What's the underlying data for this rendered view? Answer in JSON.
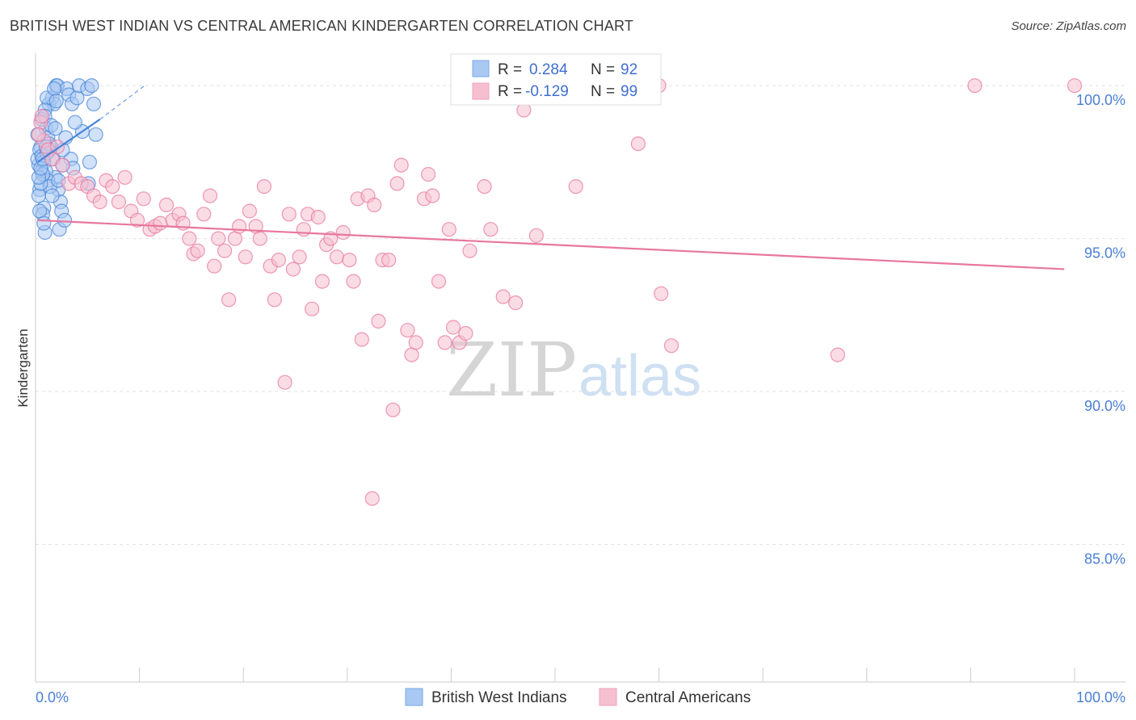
{
  "title": "BRITISH WEST INDIAN VS CENTRAL AMERICAN KINDERGARTEN CORRELATION CHART",
  "source": "Source: ZipAtlas.com",
  "watermark": {
    "zip": "ZIP",
    "atlas": "atlas"
  },
  "legend_box": {
    "rows": [
      {
        "r_label": "R =",
        "r_value": "0.284",
        "n_label": "N =",
        "n_value": "92",
        "color": "#7aaae8"
      },
      {
        "r_label": "R =",
        "r_value": "-0.129",
        "n_label": "N =",
        "n_value": "99",
        "color": "#f0a0bc"
      }
    ]
  },
  "chart_data": {
    "type": "scatter",
    "title": "BRITISH WEST INDIAN VS CENTRAL AMERICAN KINDERGARTEN CORRELATION CHART",
    "xlabel": "",
    "ylabel": "Kindergarten",
    "xlim": [
      0,
      100
    ],
    "ylim": [
      80.5,
      100.9
    ],
    "x_tick_labels": [
      "0.0%",
      "100.0%"
    ],
    "y_ticks": [
      85,
      90,
      95,
      100
    ],
    "y_tick_labels": [
      "85.0%",
      "90.0%",
      "95.0%",
      "100.0%"
    ],
    "grid": true,
    "legend_position": "bottom",
    "series": [
      {
        "name": "British West Indians",
        "color": "#4a86d8",
        "fill": "#a9c8f2",
        "trend": {
          "x": [
            0.2,
            6.2
          ],
          "y": [
            97.5,
            98.9
          ],
          "dashed_to": [
            10.5,
            100.0
          ]
        },
        "points": [
          [
            0.3,
            97.4
          ],
          [
            0.5,
            98.0
          ],
          [
            0.2,
            97.6
          ],
          [
            0.6,
            97.2
          ],
          [
            0.4,
            96.6
          ],
          [
            0.8,
            96.0
          ],
          [
            0.7,
            95.8
          ],
          [
            0.9,
            95.2
          ],
          [
            1.0,
            98.6
          ],
          [
            1.2,
            98.3
          ],
          [
            1.4,
            97.9
          ],
          [
            1.3,
            99.4
          ],
          [
            1.6,
            99.6
          ],
          [
            1.8,
            99.4
          ],
          [
            2.0,
            100.0
          ],
          [
            2.1,
            100.0
          ],
          [
            1.1,
            99.6
          ],
          [
            0.9,
            99.2
          ],
          [
            1.5,
            98.0
          ],
          [
            1.7,
            97.6
          ],
          [
            1.9,
            97.0
          ],
          [
            2.2,
            96.6
          ],
          [
            2.4,
            96.2
          ],
          [
            2.5,
            95.9
          ],
          [
            2.3,
            95.3
          ],
          [
            2.8,
            95.6
          ],
          [
            0.4,
            97.9
          ],
          [
            0.6,
            97.7
          ],
          [
            0.8,
            97.5
          ],
          [
            1.0,
            97.2
          ],
          [
            1.2,
            96.9
          ],
          [
            1.4,
            96.7
          ],
          [
            3.0,
            99.9
          ],
          [
            3.2,
            99.7
          ],
          [
            3.5,
            99.4
          ],
          [
            4.0,
            99.6
          ],
          [
            4.2,
            100.0
          ],
          [
            4.5,
            98.5
          ],
          [
            5.0,
            99.9
          ],
          [
            5.4,
            100.0
          ],
          [
            5.6,
            99.4
          ],
          [
            5.8,
            98.4
          ],
          [
            3.8,
            98.8
          ],
          [
            3.4,
            97.6
          ],
          [
            3.6,
            97.3
          ],
          [
            2.6,
            97.9
          ],
          [
            2.9,
            98.3
          ],
          [
            5.2,
            97.5
          ],
          [
            5.1,
            96.8
          ],
          [
            0.3,
            96.4
          ],
          [
            0.5,
            96.8
          ],
          [
            0.7,
            97.1
          ],
          [
            1.1,
            97.8
          ],
          [
            1.3,
            98.1
          ],
          [
            0.2,
            98.4
          ],
          [
            0.6,
            98.9
          ],
          [
            0.9,
            99.0
          ],
          [
            1.5,
            98.7
          ],
          [
            1.8,
            99.9
          ],
          [
            2.0,
            99.5
          ],
          [
            0.4,
            95.9
          ],
          [
            0.8,
            95.5
          ],
          [
            1.6,
            96.4
          ],
          [
            2.2,
            96.9
          ],
          [
            2.6,
            97.4
          ],
          [
            0.3,
            97.0
          ],
          [
            0.5,
            97.3
          ],
          [
            0.7,
            97.6
          ],
          [
            1.0,
            98.0
          ],
          [
            1.9,
            98.6
          ]
        ]
      },
      {
        "name": "Central Americans",
        "color": "#e8779d",
        "fill": "#f6bfd0",
        "trend": {
          "x": [
            0.2,
            99.0
          ],
          "y": [
            95.6,
            94.0
          ]
        },
        "points": [
          [
            0.5,
            98.8
          ],
          [
            0.8,
            98.2
          ],
          [
            1.2,
            97.9
          ],
          [
            1.6,
            97.6
          ],
          [
            2.1,
            98.0
          ],
          [
            2.6,
            97.4
          ],
          [
            3.2,
            96.8
          ],
          [
            3.8,
            97.0
          ],
          [
            4.4,
            96.8
          ],
          [
            5.0,
            96.7
          ],
          [
            5.6,
            96.4
          ],
          [
            6.2,
            96.2
          ],
          [
            6.8,
            96.9
          ],
          [
            7.4,
            96.7
          ],
          [
            8.0,
            96.2
          ],
          [
            8.6,
            97.0
          ],
          [
            9.2,
            95.9
          ],
          [
            9.8,
            95.6
          ],
          [
            10.4,
            96.3
          ],
          [
            11.0,
            95.3
          ],
          [
            11.5,
            95.4
          ],
          [
            12.0,
            95.5
          ],
          [
            12.6,
            96.1
          ],
          [
            13.2,
            95.6
          ],
          [
            13.8,
            95.8
          ],
          [
            14.2,
            95.5
          ],
          [
            14.8,
            95.0
          ],
          [
            15.2,
            94.5
          ],
          [
            15.6,
            94.6
          ],
          [
            16.2,
            95.8
          ],
          [
            16.8,
            96.4
          ],
          [
            17.2,
            94.1
          ],
          [
            17.6,
            95.0
          ],
          [
            18.2,
            94.6
          ],
          [
            18.6,
            93.0
          ],
          [
            19.2,
            95.0
          ],
          [
            19.6,
            95.4
          ],
          [
            20.2,
            94.4
          ],
          [
            20.6,
            95.9
          ],
          [
            21.2,
            95.4
          ],
          [
            21.6,
            95.0
          ],
          [
            22.0,
            96.7
          ],
          [
            22.6,
            94.1
          ],
          [
            23.0,
            93.0
          ],
          [
            23.4,
            94.3
          ],
          [
            24.0,
            90.3
          ],
          [
            24.4,
            95.8
          ],
          [
            24.8,
            94.0
          ],
          [
            25.4,
            94.4
          ],
          [
            25.8,
            95.3
          ],
          [
            26.2,
            95.8
          ],
          [
            26.6,
            92.7
          ],
          [
            27.2,
            95.7
          ],
          [
            27.6,
            93.6
          ],
          [
            28.0,
            94.8
          ],
          [
            28.4,
            95.0
          ],
          [
            29.0,
            94.4
          ],
          [
            29.6,
            95.2
          ],
          [
            30.2,
            94.3
          ],
          [
            30.6,
            93.6
          ],
          [
            31.0,
            96.3
          ],
          [
            31.4,
            91.7
          ],
          [
            32.0,
            96.4
          ],
          [
            32.6,
            96.1
          ],
          [
            33.0,
            92.3
          ],
          [
            33.4,
            94.3
          ],
          [
            34.0,
            94.3
          ],
          [
            34.4,
            89.4
          ],
          [
            34.8,
            96.8
          ],
          [
            35.2,
            97.4
          ],
          [
            35.8,
            92.0
          ],
          [
            36.2,
            91.2
          ],
          [
            36.6,
            91.6
          ],
          [
            37.4,
            96.3
          ],
          [
            37.8,
            97.1
          ],
          [
            38.2,
            96.4
          ],
          [
            38.8,
            93.6
          ],
          [
            39.4,
            91.6
          ],
          [
            39.8,
            95.3
          ],
          [
            40.2,
            92.1
          ],
          [
            40.8,
            91.6
          ],
          [
            41.4,
            91.9
          ],
          [
            41.8,
            94.6
          ],
          [
            43.2,
            96.7
          ],
          [
            43.8,
            95.3
          ],
          [
            45.0,
            93.1
          ],
          [
            46.2,
            92.9
          ],
          [
            48.2,
            95.1
          ],
          [
            52.0,
            96.7
          ],
          [
            58.0,
            98.1
          ],
          [
            60.0,
            100.0
          ],
          [
            60.2,
            93.2
          ],
          [
            61.2,
            91.5
          ],
          [
            77.2,
            91.2
          ],
          [
            90.4,
            100.0
          ],
          [
            100.0,
            100.0
          ],
          [
            32.4,
            86.5
          ],
          [
            49.0,
            100.0
          ],
          [
            47.0,
            99.2
          ],
          [
            0.3,
            98.4
          ],
          [
            0.6,
            99.0
          ]
        ]
      }
    ]
  }
}
